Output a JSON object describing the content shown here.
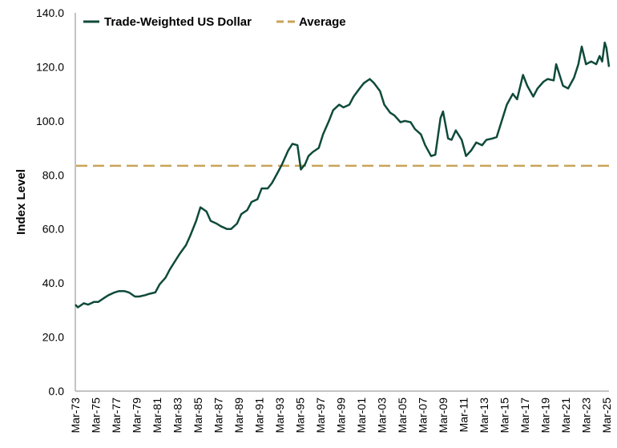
{
  "chart_data": {
    "type": "line",
    "title": "",
    "xlabel": "",
    "ylabel": "Index Level",
    "ylim": [
      0,
      140
    ],
    "yticks": [
      "0.0",
      "20.0",
      "40.0",
      "60.0",
      "80.0",
      "100.0",
      "120.0",
      "140.0"
    ],
    "xticks": [
      "Mar-73",
      "Mar-75",
      "Mar-77",
      "Mar-79",
      "Mar-81",
      "Mar-83",
      "Mar-85",
      "Mar-87",
      "Mar-89",
      "Mar-91",
      "Mar-93",
      "Mar-95",
      "Mar-97",
      "Mar-99",
      "Mar-01",
      "Mar-03",
      "Mar-05",
      "Mar-07",
      "Mar-09",
      "Mar-11",
      "Mar-13",
      "Mar-15",
      "Mar-17",
      "Mar-19",
      "Mar-21",
      "Mar-23",
      "Mar-25"
    ],
    "xrange": [
      "1973-03",
      "2025-06"
    ],
    "grid": false,
    "legend_position": "top-left",
    "series": [
      {
        "name": "Trade-Weighted US Dollar",
        "color": "#0f4a3a",
        "points": [
          [
            "1973-01",
            32.0
          ],
          [
            "1973-06",
            31.0
          ],
          [
            "1974-01",
            32.5
          ],
          [
            "1974-06",
            32.0
          ],
          [
            "1975-01",
            33.0
          ],
          [
            "1975-06",
            33.0
          ],
          [
            "1976-01",
            34.5
          ],
          [
            "1976-06",
            35.5
          ],
          [
            "1977-01",
            36.5
          ],
          [
            "1977-06",
            37.0
          ],
          [
            "1978-01",
            37.0
          ],
          [
            "1978-06",
            36.5
          ],
          [
            "1979-01",
            35.0
          ],
          [
            "1979-06",
            35.0
          ],
          [
            "1980-01",
            35.5
          ],
          [
            "1980-06",
            36.0
          ],
          [
            "1981-01",
            36.5
          ],
          [
            "1981-06",
            39.5
          ],
          [
            "1982-01",
            42.0
          ],
          [
            "1982-06",
            45.0
          ],
          [
            "1983-01",
            48.5
          ],
          [
            "1983-06",
            51.0
          ],
          [
            "1984-01",
            54.0
          ],
          [
            "1984-06",
            57.5
          ],
          [
            "1985-01",
            63.0
          ],
          [
            "1985-06",
            68.0
          ],
          [
            "1986-01",
            66.5
          ],
          [
            "1986-06",
            63.0
          ],
          [
            "1987-01",
            62.0
          ],
          [
            "1987-06",
            61.0
          ],
          [
            "1988-01",
            60.0
          ],
          [
            "1988-06",
            60.0
          ],
          [
            "1989-01",
            62.0
          ],
          [
            "1989-06",
            65.5
          ],
          [
            "1990-01",
            67.0
          ],
          [
            "1990-06",
            70.0
          ],
          [
            "1991-01",
            71.0
          ],
          [
            "1991-06",
            75.0
          ],
          [
            "1992-01",
            75.0
          ],
          [
            "1992-06",
            77.0
          ],
          [
            "1993-01",
            81.0
          ],
          [
            "1993-06",
            84.0
          ],
          [
            "1994-01",
            89.0
          ],
          [
            "1994-06",
            91.5
          ],
          [
            "1994-12",
            91.0
          ],
          [
            "1995-04",
            82.0
          ],
          [
            "1995-09",
            84.0
          ],
          [
            "1996-01",
            87.0
          ],
          [
            "1996-06",
            88.5
          ],
          [
            "1997-01",
            90.0
          ],
          [
            "1997-06",
            95.0
          ],
          [
            "1998-01",
            100.0
          ],
          [
            "1998-06",
            104.0
          ],
          [
            "1999-01",
            106.0
          ],
          [
            "1999-06",
            105.0
          ],
          [
            "2000-01",
            106.0
          ],
          [
            "2000-06",
            109.0
          ],
          [
            "2001-01",
            112.0
          ],
          [
            "2001-06",
            114.0
          ],
          [
            "2002-01",
            115.5
          ],
          [
            "2002-06",
            114.0
          ],
          [
            "2003-01",
            111.0
          ],
          [
            "2003-06",
            106.0
          ],
          [
            "2004-01",
            103.0
          ],
          [
            "2004-06",
            102.0
          ],
          [
            "2005-01",
            99.5
          ],
          [
            "2005-06",
            100.0
          ],
          [
            "2006-01",
            99.5
          ],
          [
            "2006-06",
            97.0
          ],
          [
            "2007-01",
            95.0
          ],
          [
            "2007-06",
            91.0
          ],
          [
            "2008-01",
            87.0
          ],
          [
            "2008-06",
            87.5
          ],
          [
            "2008-12",
            101.0
          ],
          [
            "2009-03",
            103.5
          ],
          [
            "2009-09",
            93.5
          ],
          [
            "2010-01",
            93.0
          ],
          [
            "2010-06",
            96.5
          ],
          [
            "2011-01",
            93.0
          ],
          [
            "2011-06",
            87.0
          ],
          [
            "2011-12",
            89.0
          ],
          [
            "2012-06",
            92.0
          ],
          [
            "2013-01",
            91.0
          ],
          [
            "2013-06",
            93.0
          ],
          [
            "2014-01",
            93.5
          ],
          [
            "2014-06",
            94.0
          ],
          [
            "2015-01",
            101.0
          ],
          [
            "2015-06",
            106.0
          ],
          [
            "2016-01",
            110.0
          ],
          [
            "2016-06",
            108.0
          ],
          [
            "2017-01",
            117.0
          ],
          [
            "2017-06",
            113.0
          ],
          [
            "2018-01",
            109.0
          ],
          [
            "2018-06",
            112.0
          ],
          [
            "2019-01",
            114.5
          ],
          [
            "2019-06",
            115.5
          ],
          [
            "2020-01",
            115.0
          ],
          [
            "2020-04",
            121.0
          ],
          [
            "2020-12",
            113.0
          ],
          [
            "2021-06",
            112.0
          ],
          [
            "2022-01",
            116.0
          ],
          [
            "2022-06",
            121.0
          ],
          [
            "2022-10",
            127.5
          ],
          [
            "2023-03",
            121.0
          ],
          [
            "2023-09",
            122.0
          ],
          [
            "2024-03",
            121.0
          ],
          [
            "2024-07",
            124.0
          ],
          [
            "2024-10",
            122.0
          ],
          [
            "2025-01",
            129.0
          ],
          [
            "2025-03",
            127.0
          ],
          [
            "2025-06",
            120.0
          ]
        ]
      }
    ],
    "reference_lines": [
      {
        "name": "Average",
        "value": 83.4,
        "color": "#c9a35a",
        "style": "dashed"
      }
    ]
  }
}
